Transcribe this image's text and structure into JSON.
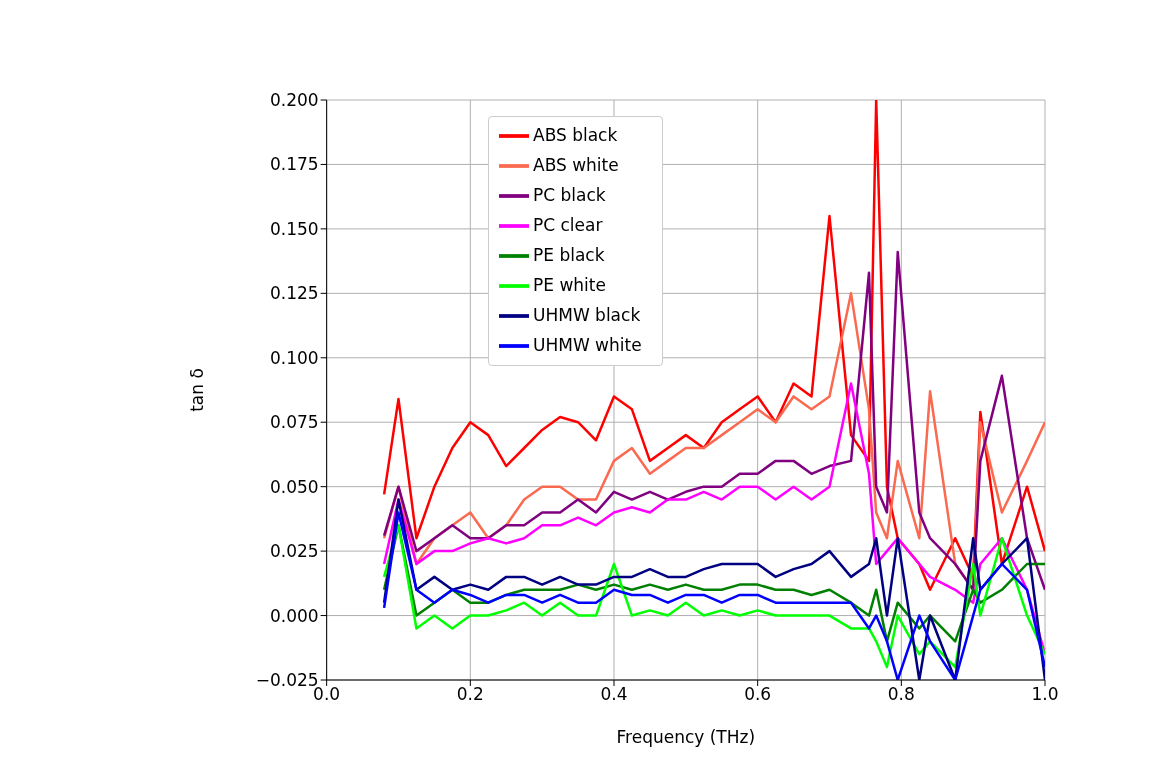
{
  "chart_data": {
    "type": "line",
    "xlabel": "Frequency (THz)",
    "ylabel": "tan δ",
    "grid": true,
    "legend": "top",
    "marker": "none",
    "line_style": "solid",
    "xlim": [
      0,
      1
    ],
    "ylim": [
      -0.025,
      0.2
    ],
    "xticks": [
      {
        "value": 0,
        "label": "0.0"
      },
      {
        "value": 0.2,
        "label": "0.2"
      },
      {
        "value": 0.4,
        "label": "0.4"
      },
      {
        "value": 0.6,
        "label": "0.6"
      },
      {
        "value": 0.8,
        "label": "0.8"
      },
      {
        "value": 1,
        "label": "1.0"
      }
    ],
    "yticks": [
      {
        "value": -0.025,
        "label": "−0.025"
      },
      {
        "value": 0,
        "label": "0.000"
      },
      {
        "value": 0.025,
        "label": "0.025"
      },
      {
        "value": 0.05,
        "label": "0.050"
      },
      {
        "value": 0.075,
        "label": "0.075"
      },
      {
        "value": 0.1,
        "label": "0.100"
      },
      {
        "value": 0.125,
        "label": "0.125"
      },
      {
        "value": 0.15,
        "label": "0.150"
      },
      {
        "value": 0.175,
        "label": "0.175"
      },
      {
        "value": 0.2,
        "label": "0.200"
      }
    ],
    "x": [
      0.08,
      0.1,
      0.125,
      0.15,
      0.175,
      0.2,
      0.225,
      0.25,
      0.275,
      0.3,
      0.325,
      0.35,
      0.375,
      0.4,
      0.425,
      0.45,
      0.475,
      0.5,
      0.525,
      0.55,
      0.575,
      0.6,
      0.625,
      0.65,
      0.675,
      0.7,
      0.73,
      0.755,
      0.765,
      0.78,
      0.795,
      0.825,
      0.84,
      0.875,
      0.9,
      0.91,
      0.94,
      0.975,
      1.0
    ],
    "series": [
      {
        "name": "ABS black",
        "color": "#ff0000",
        "values": [
          0.047,
          0.084,
          0.03,
          0.05,
          0.065,
          0.075,
          0.07,
          0.058,
          0.065,
          0.072,
          0.077,
          0.075,
          0.068,
          0.085,
          0.08,
          0.06,
          0.065,
          0.07,
          0.065,
          0.075,
          0.08,
          0.085,
          0.075,
          0.09,
          0.085,
          0.155,
          0.07,
          0.06,
          0.2,
          0.05,
          0.03,
          0.02,
          0.01,
          0.03,
          0.015,
          0.079,
          0.02,
          0.05,
          0.025
        ]
      },
      {
        "name": "ABS white",
        "color": "#fa6a50",
        "values": [
          0.03,
          0.05,
          0.02,
          0.03,
          0.035,
          0.04,
          0.03,
          0.035,
          0.045,
          0.05,
          0.05,
          0.045,
          0.045,
          0.06,
          0.065,
          0.055,
          0.06,
          0.065,
          0.065,
          0.07,
          0.075,
          0.08,
          0.075,
          0.085,
          0.08,
          0.085,
          0.125,
          0.08,
          0.04,
          0.03,
          0.06,
          0.03,
          0.087,
          0.02,
          0.01,
          0.075,
          0.04,
          0.06,
          0.075
        ]
      },
      {
        "name": "PC black",
        "color": "#800080",
        "values": [
          0.031,
          0.05,
          0.025,
          0.03,
          0.035,
          0.03,
          0.03,
          0.035,
          0.035,
          0.04,
          0.04,
          0.045,
          0.04,
          0.048,
          0.045,
          0.048,
          0.045,
          0.048,
          0.05,
          0.05,
          0.055,
          0.055,
          0.06,
          0.06,
          0.055,
          0.058,
          0.06,
          0.133,
          0.05,
          0.04,
          0.141,
          0.04,
          0.03,
          0.02,
          0.01,
          0.06,
          0.093,
          0.03,
          0.01
        ]
      },
      {
        "name": "PC clear",
        "color": "#ff00ff",
        "values": [
          0.02,
          0.045,
          0.02,
          0.025,
          0.025,
          0.028,
          0.03,
          0.028,
          0.03,
          0.035,
          0.035,
          0.038,
          0.035,
          0.04,
          0.042,
          0.04,
          0.045,
          0.045,
          0.048,
          0.045,
          0.05,
          0.05,
          0.045,
          0.05,
          0.045,
          0.05,
          0.09,
          0.055,
          0.02,
          0.025,
          0.03,
          0.02,
          0.015,
          0.01,
          0.005,
          0.02,
          0.03,
          0.01,
          -0.015
        ]
      },
      {
        "name": "PE black",
        "color": "#008000",
        "values": [
          0.01,
          0.035,
          0.0,
          0.005,
          0.01,
          0.005,
          0.005,
          0.008,
          0.01,
          0.01,
          0.01,
          0.012,
          0.01,
          0.012,
          0.01,
          0.012,
          0.01,
          0.012,
          0.01,
          0.01,
          0.012,
          0.012,
          0.01,
          0.01,
          0.008,
          0.01,
          0.005,
          0.0,
          0.01,
          -0.01,
          0.005,
          -0.005,
          0.0,
          -0.01,
          0.01,
          0.005,
          0.01,
          0.02,
          0.02
        ]
      },
      {
        "name": "PE white",
        "color": "#00ff00",
        "values": [
          0.015,
          0.035,
          -0.005,
          0.0,
          -0.005,
          0.0,
          0.0,
          0.002,
          0.005,
          0.0,
          0.005,
          0.0,
          0.0,
          0.02,
          0.0,
          0.002,
          0.0,
          0.005,
          0.0,
          0.002,
          0.0,
          0.002,
          0.0,
          0.0,
          0.0,
          0.0,
          -0.005,
          -0.005,
          -0.01,
          -0.02,
          0.0,
          -0.015,
          -0.01,
          -0.02,
          0.02,
          0.0,
          0.03,
          0.0,
          -0.015
        ]
      },
      {
        "name": "UHMW black",
        "color": "#000080",
        "values": [
          0.005,
          0.045,
          0.01,
          0.015,
          0.01,
          0.012,
          0.01,
          0.015,
          0.015,
          0.012,
          0.015,
          0.012,
          0.012,
          0.015,
          0.015,
          0.018,
          0.015,
          0.015,
          0.018,
          0.02,
          0.02,
          0.02,
          0.015,
          0.018,
          0.02,
          0.025,
          0.015,
          0.02,
          0.03,
          0.0,
          0.03,
          -0.025,
          0.0,
          -0.025,
          0.03,
          0.01,
          0.02,
          0.03,
          -0.025
        ]
      },
      {
        "name": "UHMW white",
        "color": "#0000ff",
        "values": [
          0.003,
          0.04,
          0.01,
          0.005,
          0.01,
          0.008,
          0.005,
          0.008,
          0.008,
          0.005,
          0.008,
          0.005,
          0.005,
          0.01,
          0.008,
          0.008,
          0.005,
          0.008,
          0.008,
          0.005,
          0.008,
          0.008,
          0.005,
          0.005,
          0.005,
          0.005,
          0.005,
          -0.005,
          0.0,
          -0.01,
          -0.025,
          0.0,
          -0.01,
          -0.025,
          0.0,
          0.01,
          0.02,
          0.01,
          -0.02
        ]
      }
    ]
  }
}
